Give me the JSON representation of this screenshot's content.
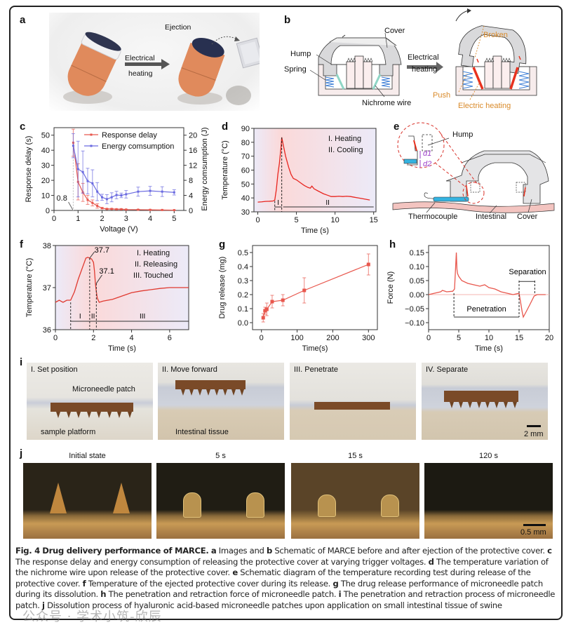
{
  "panels": {
    "a": {
      "label": "a",
      "arrow_text_1": "Electrical",
      "arrow_text_2": "heating",
      "ejection": "Ejection"
    },
    "b": {
      "label": "b",
      "cover": "Cover",
      "hump": "Hump",
      "spring": "Spring",
      "nichrome": "Nichrome wire",
      "arrow_text_1": "Electrical",
      "arrow_text_2": "heating",
      "broken": "Broken",
      "push": "Push",
      "electric_heating": "Electric heating"
    },
    "c": {
      "label": "c"
    },
    "d": {
      "label": "d"
    },
    "e": {
      "label": "e",
      "hump": "Hump",
      "d1": "d1",
      "d2": "d2",
      "thermocouple": "Thermocouple",
      "intestinal": "Intestinal",
      "cover": "Cover"
    },
    "f": {
      "label": "f"
    },
    "g": {
      "label": "g"
    },
    "h": {
      "label": "h"
    },
    "i": {
      "label": "i",
      "frames": [
        "I. Set position",
        "II. Move forward",
        "III. Penetrate",
        "IV. Separate"
      ],
      "microneedle_patch": "Microneedle patch",
      "sample_platform": "sample platform",
      "intestinal_tissue": "Intestinal tissue",
      "scale": "2 mm"
    },
    "j": {
      "label": "j",
      "frames": [
        "Initial state",
        "5 s",
        "15 s",
        "120 s"
      ],
      "scale": "0.5 mm"
    }
  },
  "chart_data": [
    {
      "id": "c",
      "type": "line",
      "xlabel": "Voltage (V)",
      "ylabel": "Response delay (s)",
      "y2label": "Energy comsumption (J)",
      "xlim": [
        0,
        5.4
      ],
      "ylim": [
        0,
        55
      ],
      "y2lim": [
        0,
        22
      ],
      "xticks": [
        0,
        1,
        2,
        3,
        4,
        5
      ],
      "yticks": [
        0,
        10,
        20,
        30,
        40,
        50
      ],
      "y2ticks": [
        0,
        4,
        8,
        12,
        16,
        20
      ],
      "annotation": "0.8",
      "legend": "top-right",
      "series": [
        {
          "name": "Response delay",
          "axis": "left",
          "color": "#e8574d",
          "x": [
            0.8,
            1.0,
            1.2,
            1.4,
            1.6,
            1.8,
            2.0,
            2.2,
            2.4,
            2.6,
            2.8,
            3.0,
            3.5,
            4.0,
            4.5,
            5.0
          ],
          "y": [
            45,
            19,
            12,
            7,
            5,
            3,
            1.5,
            1,
            1,
            0.8,
            0.8,
            0.6,
            0.5,
            0.4,
            0.3,
            0.2
          ],
          "err": [
            9,
            12,
            6,
            3,
            2,
            1.5,
            0.5,
            0.3,
            0.3,
            0.3,
            0.3,
            0.2,
            0.2,
            0.2,
            0.1,
            0.1
          ]
        },
        {
          "name": "Energy comsumption",
          "axis": "right",
          "color": "#6a6ae0",
          "x": [
            0.8,
            1.0,
            1.2,
            1.4,
            1.6,
            1.8,
            2.0,
            2.2,
            2.4,
            2.6,
            2.8,
            3.0,
            3.5,
            4.0,
            4.5,
            5.0
          ],
          "y": [
            17.2,
            11.0,
            10.2,
            7.8,
            7.2,
            5.0,
            3.5,
            3.0,
            3.5,
            4.1,
            4.0,
            4.3,
            5.0,
            5.2,
            5.0,
            4.8
          ],
          "err": [
            3.2,
            7.4,
            5.6,
            3.4,
            3.6,
            2.4,
            0.8,
            1.2,
            1.2,
            1.0,
            0.6,
            1.0,
            1.2,
            1.2,
            1.3,
            0.7
          ]
        }
      ]
    },
    {
      "id": "d",
      "type": "line",
      "xlabel": "Time (s)",
      "ylabel": "Temperature (°C)",
      "xlim": [
        -0.5,
        15.3
      ],
      "ylim": [
        30,
        90
      ],
      "xticks": [
        0,
        5,
        10,
        15
      ],
      "yticks": [
        30,
        40,
        50,
        60,
        70,
        80,
        90
      ],
      "legend_lines": [
        "I. Heating",
        "II. Cooling"
      ],
      "phase_labels": [
        "I",
        "II"
      ],
      "phase_bounds": [
        2.2,
        3.1,
        15
      ],
      "series": [
        {
          "name": "Temperature",
          "color": "#e8251f",
          "x": [
            0,
            0.5,
            1,
            1.5,
            2.0,
            2.2,
            2.4,
            2.6,
            2.8,
            3.0,
            3.1,
            3.3,
            3.6,
            4.0,
            4.3,
            4.6,
            5.0,
            5.5,
            6.0,
            6.5,
            6.8,
            7.0,
            7.3,
            7.8,
            8.5,
            9.0,
            9.5,
            10.0,
            10.5,
            11.0,
            11.5,
            12.0,
            12.5,
            13.0,
            13.5,
            14.0,
            14.5
          ],
          "y": [
            37,
            37.2,
            37.5,
            37.6,
            37.8,
            38.5,
            46,
            57,
            65,
            76,
            83.5,
            78,
            70,
            62,
            57,
            54,
            53,
            51,
            49,
            47.5,
            47,
            48.5,
            46.5,
            45,
            43,
            42,
            41,
            41,
            41.2,
            41,
            41.2,
            41,
            40.5,
            40,
            39.5,
            39,
            38.5
          ]
        }
      ]
    },
    {
      "id": "f",
      "type": "line",
      "xlabel": "Time (s)",
      "ylabel": "Temperature (°C)",
      "xlim": [
        0,
        7
      ],
      "ylim": [
        36,
        38
      ],
      "xticks": [
        0,
        2,
        4,
        6
      ],
      "yticks": [
        36,
        37,
        38
      ],
      "legend_lines": [
        "I. Heating",
        "II. Releasing",
        "III. Touched"
      ],
      "phase_labels": [
        "I",
        "II",
        "III"
      ],
      "phase_bounds": [
        0.8,
        1.8,
        2.15,
        7
      ],
      "annotations": [
        "37.7",
        "37.1"
      ],
      "series": [
        {
          "name": "Temperature",
          "color": "#e03a30",
          "x": [
            0,
            0.2,
            0.4,
            0.6,
            0.8,
            1.0,
            1.2,
            1.4,
            1.6,
            1.7,
            1.8,
            1.9,
            2.0,
            2.05,
            2.1,
            2.15,
            2.2,
            2.3,
            2.5,
            3.0,
            3.5,
            4.0,
            4.5,
            5.0,
            5.5,
            6.0,
            6.5,
            7.0
          ],
          "y": [
            36.65,
            36.7,
            36.65,
            36.7,
            36.7,
            36.9,
            37.2,
            37.45,
            37.7,
            37.72,
            37.7,
            37.68,
            37.6,
            37.4,
            37.1,
            36.9,
            36.75,
            36.65,
            36.68,
            36.72,
            36.8,
            36.88,
            36.92,
            36.95,
            36.98,
            37.0,
            37.0,
            37.0
          ]
        }
      ]
    },
    {
      "id": "g",
      "type": "line",
      "xlabel": "Time(s)",
      "ylabel": "Drug release (mg)",
      "xlim": [
        -25,
        325
      ],
      "ylim": [
        -0.05,
        0.55
      ],
      "xticks": [
        0,
        100,
        200,
        300
      ],
      "yticks": [
        0.0,
        0.1,
        0.2,
        0.3,
        0.4,
        0.5
      ],
      "series": [
        {
          "name": "Drug release",
          "color": "#e8574d",
          "x": [
            5,
            10,
            15,
            30,
            60,
            120,
            300
          ],
          "y": [
            0.035,
            0.085,
            0.095,
            0.15,
            0.16,
            0.23,
            0.415
          ],
          "err": [
            0.03,
            0.025,
            0.045,
            0.045,
            0.04,
            0.09,
            0.075
          ]
        }
      ]
    },
    {
      "id": "h",
      "type": "line",
      "xlabel": "Time (s)",
      "ylabel": "Force (N)",
      "xlim": [
        0,
        20
      ],
      "ylim": [
        -0.125,
        0.175
      ],
      "xticks": [
        0,
        5,
        10,
        15,
        20
      ],
      "yticks": [
        -0.1,
        -0.05,
        0.0,
        0.05,
        0.1,
        0.15
      ],
      "annotations": [
        "Penetration",
        "Separation"
      ],
      "phase_bounds": [
        4.2,
        15.0,
        17.6
      ],
      "series": [
        {
          "name": "Force",
          "color": "#e8574d",
          "x": [
            0,
            1,
            2,
            2.3,
            3,
            4,
            4.3,
            4.6,
            4.7,
            4.8,
            5.0,
            5.5,
            6.5,
            7.5,
            8.5,
            9.3,
            10,
            11,
            12,
            13,
            14,
            15,
            15.2,
            15.5,
            15.7,
            16.2,
            16.8,
            17.5,
            18,
            19,
            19.4
          ],
          "y": [
            0.0,
            0.005,
            0.01,
            0.015,
            0.01,
            0.012,
            0.02,
            0.15,
            0.09,
            0.075,
            0.065,
            0.05,
            0.04,
            0.035,
            0.03,
            0.035,
            0.025,
            0.02,
            0.01,
            0.005,
            0.0,
            0.005,
            -0.02,
            -0.06,
            -0.08,
            -0.06,
            -0.035,
            -0.005,
            0.0,
            0.0,
            0.0
          ]
        }
      ]
    }
  ],
  "caption": {
    "fig": "Fig. 4",
    "title": "Drug delivery performance of MARCE.",
    "parts": [
      {
        "k": "a",
        "t": "Images and"
      },
      {
        "k": "b",
        "t": "Schematic of MARCE before and after ejection of the protective cover."
      },
      {
        "k": "c",
        "t": "The response delay and energy consumption of releasing the protective cover at varying trigger voltages."
      },
      {
        "k": "d",
        "t": "The temperature variation of the nichrome wire upon release of the protective cover."
      },
      {
        "k": "e",
        "t": "Schematic diagram of the temperature recording test during release of the protective cover."
      },
      {
        "k": "f",
        "t": "Temperature of the ejected protective cover during its release."
      },
      {
        "k": "g",
        "t": "The drug release performance of microneedle patch during its dissolution."
      },
      {
        "k": "h",
        "t": "The penetration and retraction force of microneedle patch."
      },
      {
        "k": "i",
        "t": "The penetration and retraction process of microneedle patch."
      },
      {
        "k": "j",
        "t": "Dissolution process of hyaluronic acid-based microneedle patches upon application on small intestinal tissue of swine"
      }
    ]
  },
  "watermark": "公众号 · 学术小筑-欣辰"
}
